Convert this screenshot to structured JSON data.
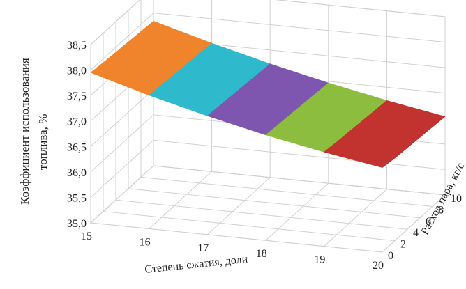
{
  "chart_data": {
    "type": "surface",
    "title": "",
    "xlabel": "Степень сжатия, доли",
    "ylabel": "Расход пара, кг/с",
    "zlabel": [
      "Коэффициент использования",
      "топлива, %"
    ],
    "x": [
      15,
      16,
      17,
      18,
      19,
      20
    ],
    "x_ticks": [
      "15",
      "16",
      "17",
      "18",
      "19",
      "20"
    ],
    "y": [
      0,
      2,
      4,
      6,
      8,
      10
    ],
    "y_ticks": [
      "0",
      "2",
      "4",
      "6",
      "8",
      "10"
    ],
    "z_ticks": [
      "35,0",
      "35,5",
      "36,0",
      "36,5",
      "37,0",
      "37,5",
      "38,0",
      "38,5"
    ],
    "zlim": [
      35.0,
      38.5
    ],
    "band_colors": [
      "#f0842c",
      "#2fb9cc",
      "#7e56b0",
      "#8cbd3f",
      "#c2322f",
      "#3f8ec9"
    ],
    "z": [
      [
        37.95,
        37.62,
        37.33,
        37.07,
        36.85,
        36.66
      ],
      [
        37.92,
        37.6,
        37.31,
        37.05,
        36.82,
        36.62
      ],
      [
        37.9,
        37.58,
        37.29,
        37.03,
        36.8,
        36.6
      ],
      [
        37.88,
        37.56,
        37.27,
        37.01,
        36.78,
        36.58
      ],
      [
        37.86,
        37.54,
        37.25,
        36.99,
        36.76,
        36.56
      ],
      [
        37.84,
        37.52,
        37.23,
        36.97,
        36.74,
        36.54
      ]
    ]
  }
}
